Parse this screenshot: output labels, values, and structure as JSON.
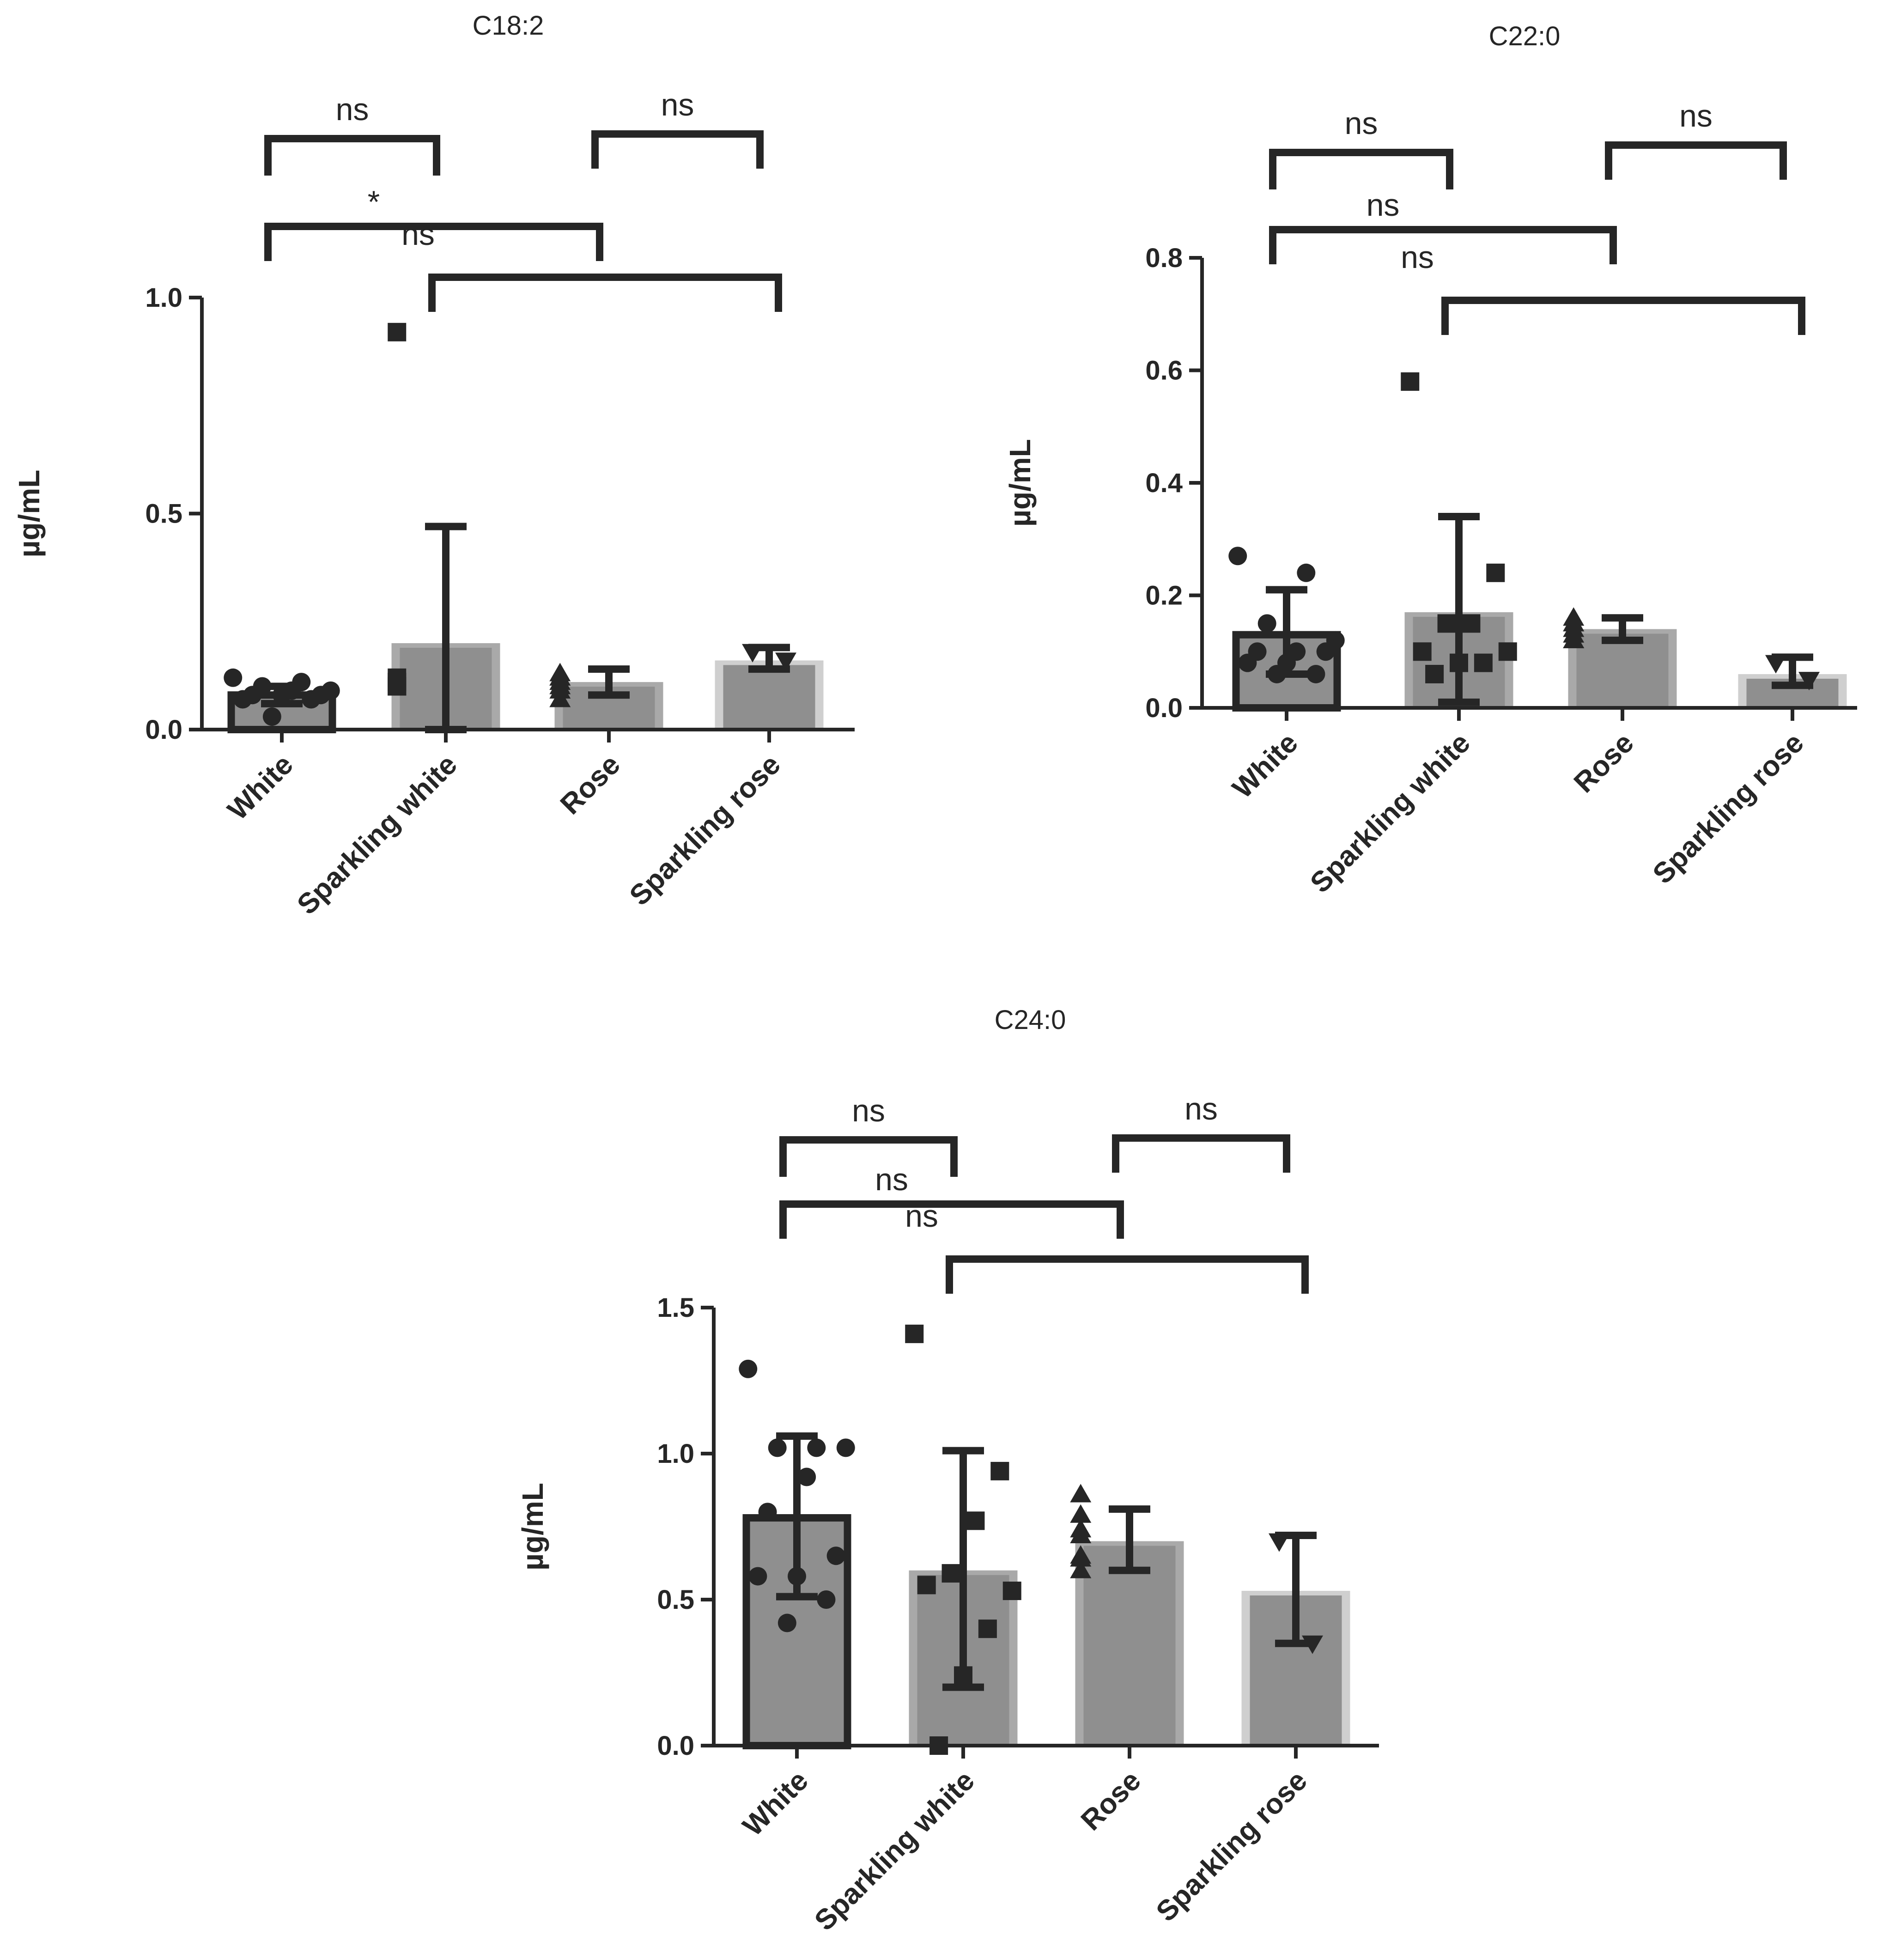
{
  "chart_data": [
    {
      "type": "bar",
      "title": "C18:2",
      "ylabel": "µg/mL",
      "xlabel": "",
      "ylim": [
        0,
        1.0
      ],
      "yticks": [
        "0.0",
        "0.5",
        "1.0"
      ],
      "categories": [
        "White",
        "Sparkling white",
        "Rose",
        "Sparkling rose"
      ],
      "markers": [
        "circle",
        "square",
        "triangle",
        "triangle-down"
      ],
      "means": [
        0.08,
        0.2,
        0.11,
        0.16
      ],
      "error": [
        [
          0.06,
          0.1
        ],
        [
          0.0,
          0.47
        ],
        [
          0.08,
          0.14
        ],
        [
          0.14,
          0.19
        ]
      ],
      "points": [
        [
          0.12,
          0.11,
          0.1,
          0.09,
          0.09,
          0.08,
          0.08,
          0.08,
          0.07,
          0.07,
          0.03
        ],
        [
          0.92,
          0.12,
          0.11,
          0.11,
          0.1,
          0.1,
          0.1
        ],
        [
          0.13,
          0.12,
          0.12,
          0.11,
          0.1,
          0.09,
          0.07
        ],
        [
          0.18,
          0.16
        ]
      ],
      "brackets": [
        {
          "from": 0,
          "to": 1,
          "label": "ns"
        },
        {
          "from": 2,
          "to": 3,
          "label": "ns"
        },
        {
          "from": 0,
          "to": 2,
          "label": "*"
        },
        {
          "from": 1,
          "to": 3,
          "label": "ns"
        }
      ]
    },
    {
      "type": "bar",
      "title": "C22:0",
      "ylabel": "µg/mL",
      "xlabel": "",
      "ylim": [
        0,
        0.8
      ],
      "yticks": [
        "0.0",
        "0.2",
        "0.4",
        "0.6",
        "0.8"
      ],
      "categories": [
        "White",
        "Sparkling white",
        "Rose",
        "Sparkling rose"
      ],
      "markers": [
        "circle",
        "square",
        "triangle",
        "triangle-down"
      ],
      "means": [
        0.13,
        0.17,
        0.14,
        0.06
      ],
      "error": [
        [
          0.06,
          0.21
        ],
        [
          0.01,
          0.34
        ],
        [
          0.12,
          0.16
        ],
        [
          0.04,
          0.09
        ]
      ],
      "points": [
        [
          0.27,
          0.24,
          0.15,
          0.12,
          0.1,
          0.1,
          0.1,
          0.08,
          0.08,
          0.06,
          0.06
        ],
        [
          0.58,
          0.24,
          0.15,
          0.15,
          0.1,
          0.1,
          0.08,
          0.08,
          0.06
        ],
        [
          0.16,
          0.15,
          0.15,
          0.14,
          0.13,
          0.12,
          0.12
        ],
        [
          0.08,
          0.05
        ]
      ],
      "brackets": [
        {
          "from": 0,
          "to": 1,
          "label": "ns"
        },
        {
          "from": 2,
          "to": 3,
          "label": "ns"
        },
        {
          "from": 0,
          "to": 2,
          "label": "ns"
        },
        {
          "from": 1,
          "to": 3,
          "label": "ns"
        }
      ]
    },
    {
      "type": "bar",
      "title": "C24:0",
      "ylabel": "µg/mL",
      "xlabel": "",
      "ylim": [
        0,
        1.5
      ],
      "yticks": [
        "0.0",
        "0.5",
        "1.0",
        "1.5"
      ],
      "categories": [
        "White",
        "Sparkling white",
        "Rose",
        "Sparkling rose"
      ],
      "markers": [
        "circle",
        "square",
        "triangle",
        "triangle-down"
      ],
      "means": [
        0.78,
        0.6,
        0.7,
        0.53
      ],
      "error": [
        [
          0.51,
          1.06
        ],
        [
          0.2,
          1.01
        ],
        [
          0.6,
          0.81
        ],
        [
          0.35,
          0.72
        ]
      ],
      "points": [
        [
          1.29,
          1.02,
          1.02,
          1.02,
          0.92,
          0.8,
          0.65,
          0.58,
          0.58,
          0.5,
          0.42
        ],
        [
          1.41,
          0.94,
          0.77,
          0.59,
          0.55,
          0.53,
          0.4,
          0.24,
          0.0
        ],
        [
          0.86,
          0.79,
          0.74,
          0.72,
          0.65,
          0.64,
          0.6
        ],
        [
          0.7,
          0.35
        ]
      ],
      "brackets": [
        {
          "from": 0,
          "to": 1,
          "label": "ns"
        },
        {
          "from": 2,
          "to": 3,
          "label": "ns"
        },
        {
          "from": 0,
          "to": 2,
          "label": "ns"
        },
        {
          "from": 1,
          "to": 3,
          "label": "ns"
        }
      ]
    }
  ]
}
